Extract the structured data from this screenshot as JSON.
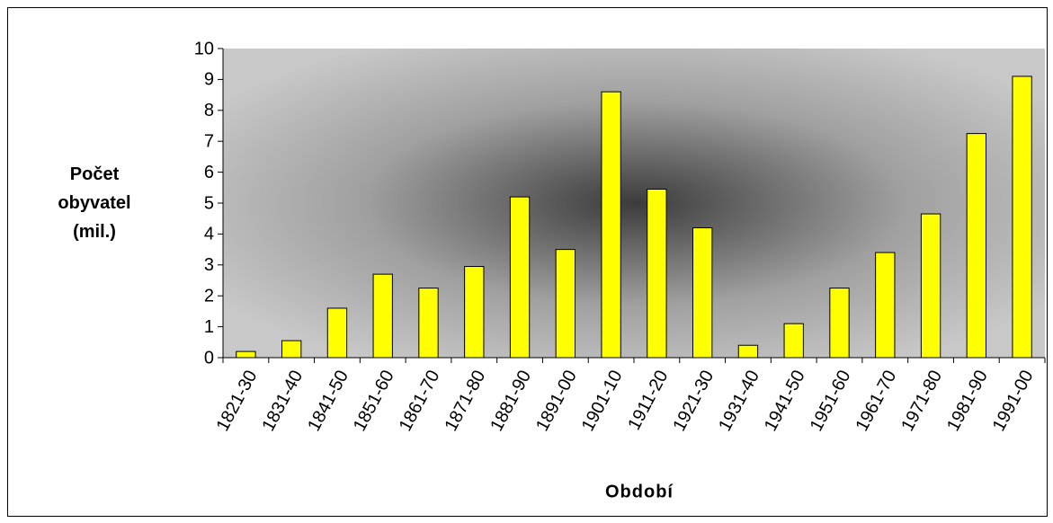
{
  "chart_data": {
    "type": "bar",
    "xlabel": "Období",
    "ylabel": "Počet obyvatel (mil.)",
    "categories": [
      "1821-30",
      "1831-40",
      "1841-50",
      "1851-60",
      "1861-70",
      "1871-80",
      "1881-90",
      "1891-00",
      "1901-10",
      "1911-20",
      "1921-30",
      "1931-40",
      "1941-50",
      "1951-60",
      "1961-70",
      "1971-80",
      "1981-90",
      "1991-00"
    ],
    "values": [
      0.2,
      0.55,
      1.6,
      2.7,
      2.25,
      2.95,
      5.2,
      3.5,
      8.6,
      5.45,
      4.2,
      0.4,
      1.1,
      2.25,
      3.4,
      4.65,
      7.25,
      9.1
    ],
    "color": "#ffff00",
    "ylim": [
      0,
      10
    ],
    "yticks": [
      0,
      1,
      2,
      3,
      4,
      5,
      6,
      7,
      8,
      9,
      10
    ],
    "grid": false
  }
}
